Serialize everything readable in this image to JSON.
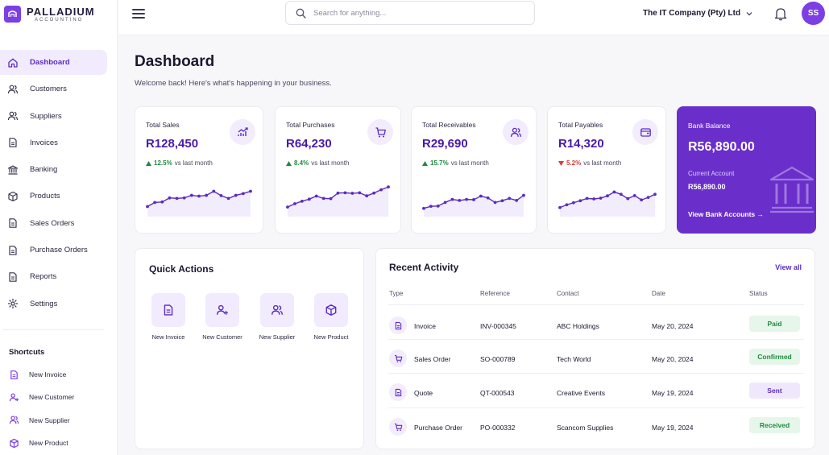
{
  "brand": {
    "name": "PALLADIUM",
    "sub": "ACCOUNTING",
    "accent": "#7b3fe4"
  },
  "nav": [
    {
      "label": "Dashboard",
      "icon": "home-icon",
      "active": true
    },
    {
      "label": "Customers",
      "icon": "users-icon"
    },
    {
      "label": "Suppliers",
      "icon": "user-group-icon"
    },
    {
      "label": "Invoices",
      "icon": "document-icon"
    },
    {
      "label": "Banking",
      "icon": "bank-icon"
    },
    {
      "label": "Products",
      "icon": "box-icon"
    },
    {
      "label": "Sales Orders",
      "icon": "document-icon"
    },
    {
      "label": "Purchase Orders",
      "icon": "document-icon"
    },
    {
      "label": "Reports",
      "icon": "document-icon"
    },
    {
      "label": "Settings",
      "icon": "gear-icon"
    }
  ],
  "shortcuts": {
    "title": "Shortcuts",
    "items": [
      {
        "label": "New Invoice",
        "icon": "document-icon"
      },
      {
        "label": "New Customer",
        "icon": "user-plus-icon"
      },
      {
        "label": "New Supplier",
        "icon": "users-icon"
      },
      {
        "label": "New Product",
        "icon": "box-icon"
      }
    ]
  },
  "topbar": {
    "search_placeholder": "Search for anything...",
    "company": "The IT Company (Pty) Ltd",
    "avatar": "SS"
  },
  "header": {
    "title": "Dashboard",
    "subtitle": "Welcome back! Here's what's happening in your business."
  },
  "stats": [
    {
      "label": "Total Sales",
      "value": "R128,450",
      "change": "12.5%",
      "direction": "up",
      "suffix": "vs last month",
      "icon": "trend-chart-icon",
      "spark": [
        3,
        4.6,
        4.8,
        6.4,
        6.2,
        6.4,
        7.4,
        7.1,
        7.4,
        9,
        7.3,
        6.2,
        7.4,
        8.1,
        9
      ]
    },
    {
      "label": "Total Purchases",
      "value": "R64,230",
      "change": "8.4%",
      "direction": "up",
      "suffix": "vs last month",
      "icon": "cart-icon",
      "spark": [
        2.8,
        4.1,
        5.1,
        5.9,
        7.1,
        6.2,
        6.1,
        8.3,
        8.4,
        8.2,
        8.4,
        7.2,
        8.3,
        9.6,
        10.7
      ]
    },
    {
      "label": "Total Receivables",
      "value": "R29,690",
      "change": "15.7%",
      "direction": "up",
      "suffix": "vs last month",
      "icon": "users-icon",
      "spark": [
        2.3,
        3.1,
        3.2,
        4.6,
        5.8,
        5.4,
        5.8,
        5.7,
        7.1,
        6.4,
        4.6,
        5.3,
        6.2,
        5.4,
        7.4
      ]
    },
    {
      "label": "Total Payables",
      "value": "R14,320",
      "change": "5.2%",
      "direction": "down",
      "suffix": "vs last month",
      "icon": "wallet-icon",
      "spark": [
        2.6,
        3.7,
        4.5,
        5.3,
        6.2,
        6,
        6.3,
        7.2,
        8.7,
        7.8,
        6.1,
        7.3,
        5.6,
        6.6,
        7.8
      ]
    }
  ],
  "bank": {
    "label": "Bank Balance",
    "value": "R56,890.00",
    "account_label": "Current Account",
    "account_value": "R56,890.00",
    "link": "View Bank Accounts →"
  },
  "quick_actions": {
    "title": "Quick Actions",
    "items": [
      {
        "label": "New Invoice",
        "icon": "document-icon"
      },
      {
        "label": "New Customer",
        "icon": "user-plus-icon"
      },
      {
        "label": "New Supplier",
        "icon": "users-icon"
      },
      {
        "label": "New Product",
        "icon": "box-icon"
      }
    ]
  },
  "recent_activity": {
    "title": "Recent Activity",
    "view_all": "View all",
    "columns": [
      "Type",
      "Reference",
      "Contact",
      "Date",
      "Status"
    ],
    "rows": [
      {
        "type": "Invoice",
        "icon": "document-icon",
        "reference": "INV-000345",
        "contact": "ABC Holdings",
        "date": "May 20, 2024",
        "status": "Paid",
        "status_bg": "#e6f6ea",
        "status_fg": "#1f8a3f"
      },
      {
        "type": "Sales Order",
        "icon": "cart-icon",
        "reference": "SO-000789",
        "contact": "Tech World",
        "date": "May 20, 2024",
        "status": "Confirmed",
        "status_bg": "#e6f6ea",
        "status_fg": "#1f8a3f"
      },
      {
        "type": "Quote",
        "icon": "document-icon",
        "reference": "QT-000543",
        "contact": "Creative Events",
        "date": "May 19, 2024",
        "status": "Sent",
        "status_bg": "#efe8fd",
        "status_fg": "#5b2bc0"
      },
      {
        "type": "Purchase Order",
        "icon": "cart-icon",
        "reference": "PO-000332",
        "contact": "Scancom Supplies",
        "date": "May 19, 2024",
        "status": "Received",
        "status_bg": "#e6f6ea",
        "status_fg": "#1f8a3f"
      }
    ]
  }
}
